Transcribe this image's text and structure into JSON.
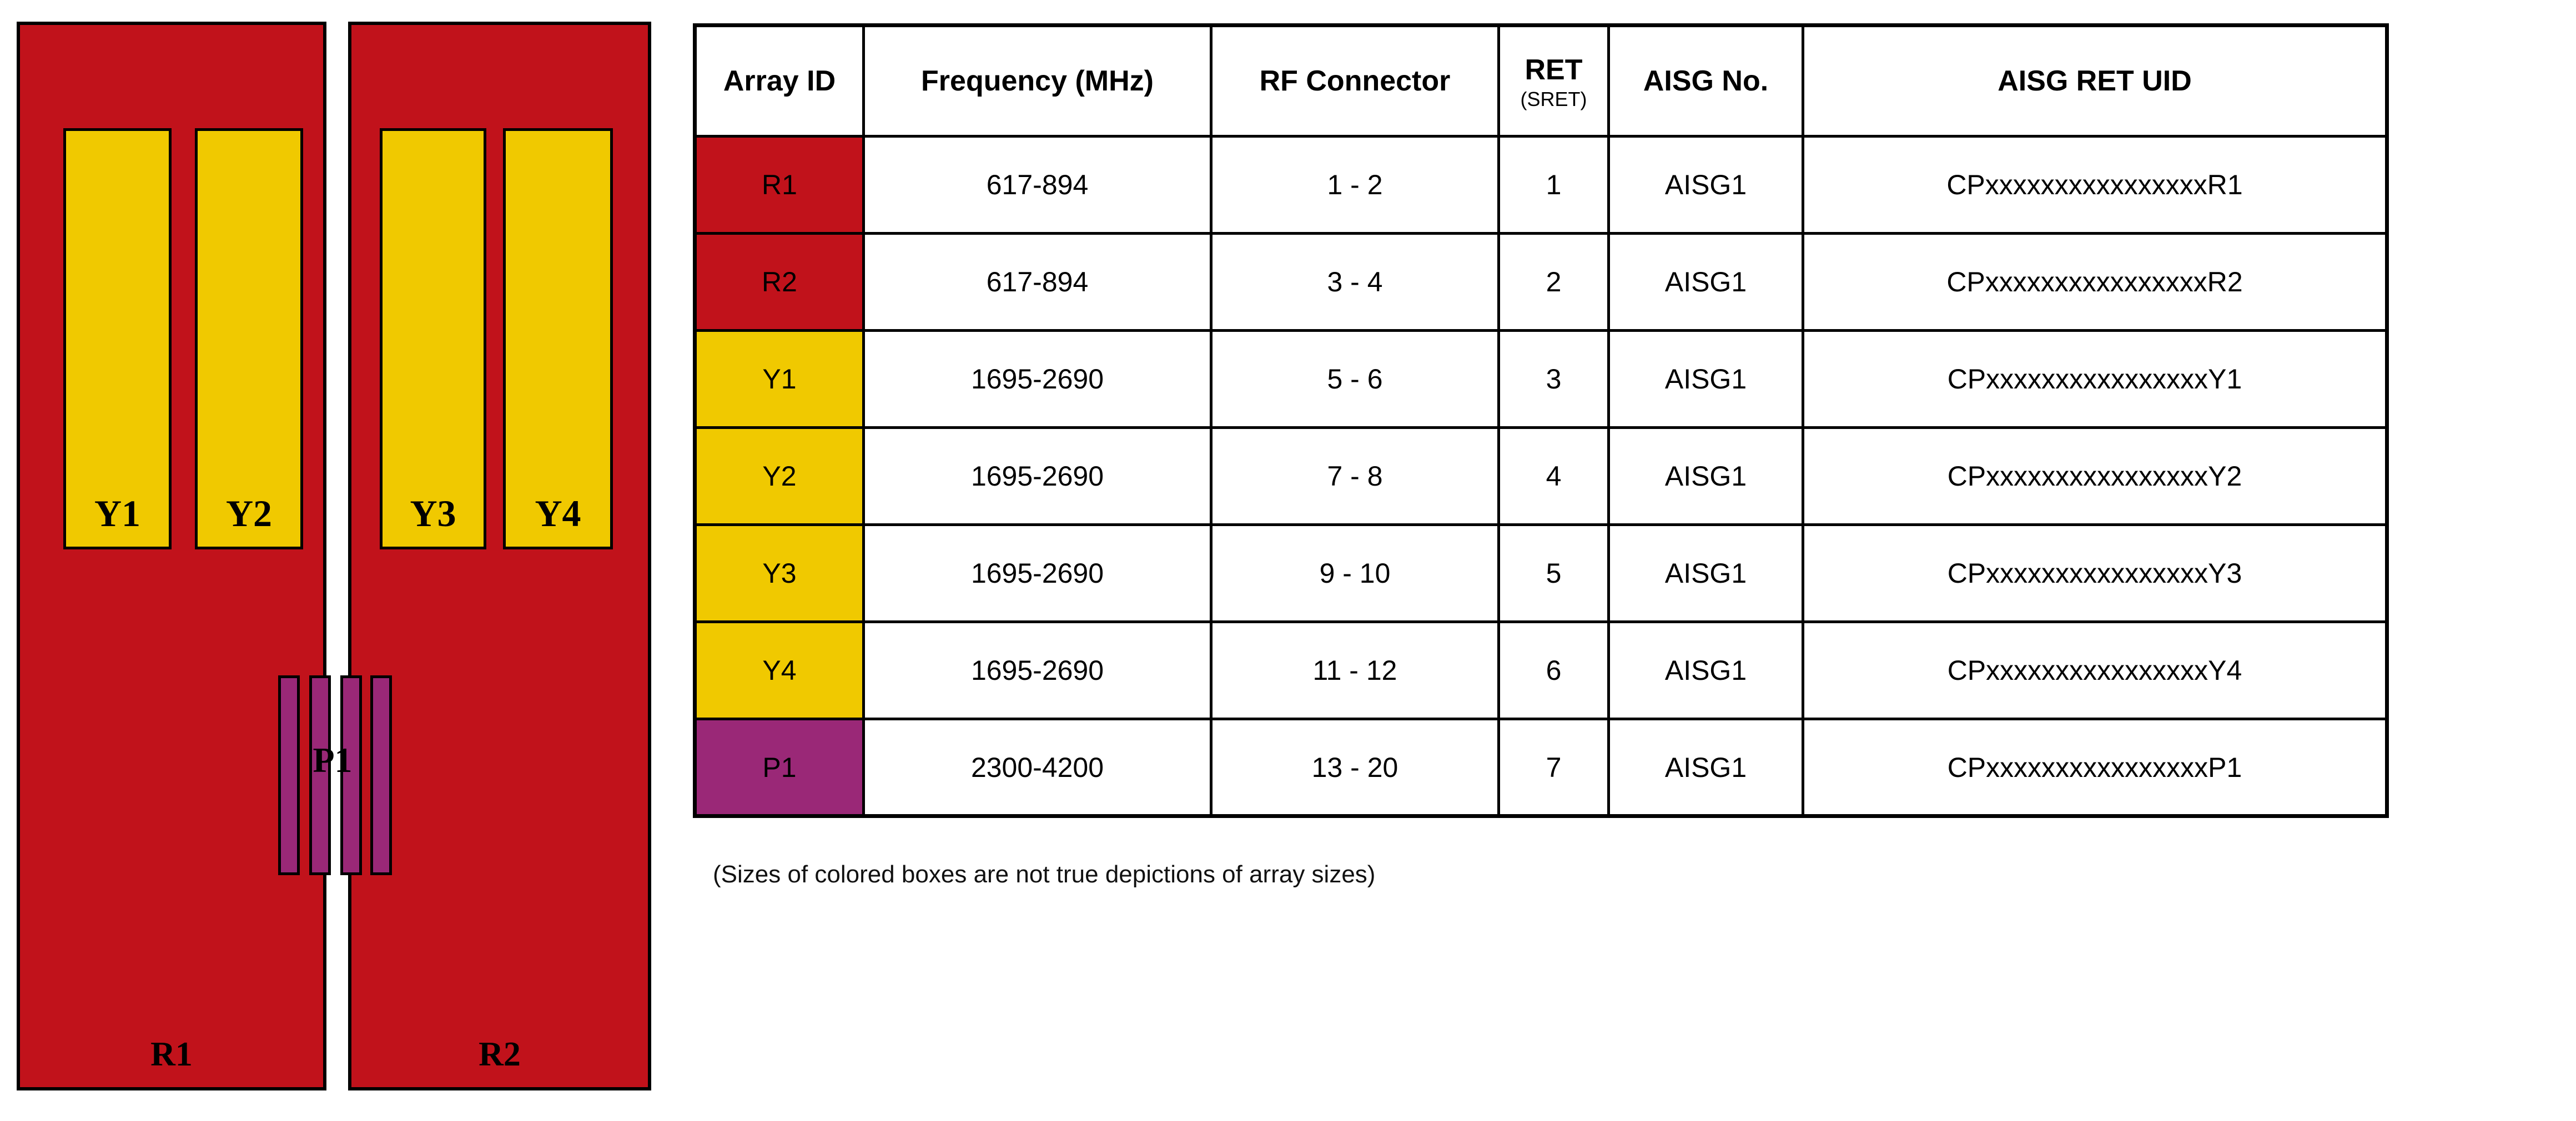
{
  "colors": {
    "red": "#C1121B",
    "yellow": "#F0C900",
    "purple": "#9A2877"
  },
  "diagram": {
    "panels": [
      {
        "label": "R1",
        "color": "red"
      },
      {
        "label": "R2",
        "color": "red"
      }
    ],
    "arrays_y": [
      {
        "label": "Y1",
        "color": "yellow"
      },
      {
        "label": "Y2",
        "color": "yellow"
      },
      {
        "label": "Y3",
        "color": "yellow"
      },
      {
        "label": "Y4",
        "color": "yellow"
      }
    ],
    "p_array": {
      "label": "P1",
      "color": "purple",
      "bar_count": 4
    }
  },
  "table": {
    "columns": [
      {
        "key": "array_id",
        "label": "Array ID"
      },
      {
        "key": "frequency",
        "label": "Frequency (MHz)"
      },
      {
        "key": "rf_connector",
        "label": "RF Connector"
      },
      {
        "key": "ret",
        "label": "RET",
        "sublabel": "(SRET)"
      },
      {
        "key": "aisg_no",
        "label": "AISG No."
      },
      {
        "key": "aisg_ret_uid",
        "label": "AISG RET UID"
      }
    ],
    "rows": [
      {
        "array_id": "R1",
        "color": "red",
        "frequency": "617-894",
        "rf_connector": "1 - 2",
        "ret": "1",
        "aisg_no": "AISG1",
        "aisg_ret_uid": "CPxxxxxxxxxxxxxxxxR1"
      },
      {
        "array_id": "R2",
        "color": "red",
        "frequency": "617-894",
        "rf_connector": "3 - 4",
        "ret": "2",
        "aisg_no": "AISG1",
        "aisg_ret_uid": "CPxxxxxxxxxxxxxxxxR2"
      },
      {
        "array_id": "Y1",
        "color": "yellow",
        "frequency": "1695-2690",
        "rf_connector": "5 - 6",
        "ret": "3",
        "aisg_no": "AISG1",
        "aisg_ret_uid": "CPxxxxxxxxxxxxxxxxY1"
      },
      {
        "array_id": "Y2",
        "color": "yellow",
        "frequency": "1695-2690",
        "rf_connector": "7 - 8",
        "ret": "4",
        "aisg_no": "AISG1",
        "aisg_ret_uid": "CPxxxxxxxxxxxxxxxxY2"
      },
      {
        "array_id": "Y3",
        "color": "yellow",
        "frequency": "1695-2690",
        "rf_connector": "9 - 10",
        "ret": "5",
        "aisg_no": "AISG1",
        "aisg_ret_uid": "CPxxxxxxxxxxxxxxxxY3"
      },
      {
        "array_id": "Y4",
        "color": "yellow",
        "frequency": "1695-2690",
        "rf_connector": "11 - 12",
        "ret": "6",
        "aisg_no": "AISG1",
        "aisg_ret_uid": "CPxxxxxxxxxxxxxxxxY4"
      },
      {
        "array_id": "P1",
        "color": "purple",
        "frequency": "2300-4200",
        "rf_connector": "13 - 20",
        "ret": "7",
        "aisg_no": "AISG1",
        "aisg_ret_uid": "CPxxxxxxxxxxxxxxxxP1"
      }
    ]
  },
  "footnote": "(Sizes of colored boxes are not true depictions of array sizes)"
}
